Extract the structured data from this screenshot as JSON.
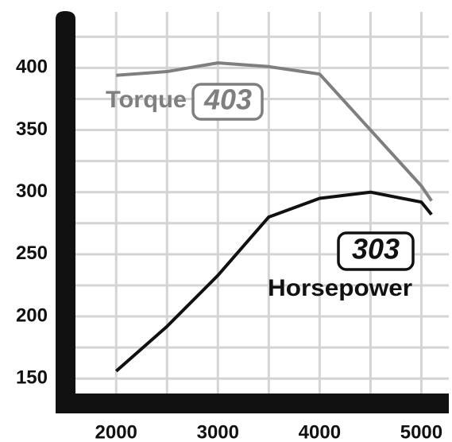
{
  "chart_data": {
    "type": "line",
    "x": [
      2000,
      2500,
      3000,
      3500,
      4000,
      4500,
      5000,
      5100
    ],
    "series": [
      {
        "name": "Torque",
        "color": "#7f7f7f",
        "rating": 403,
        "values": [
          394,
          397,
          404,
          401,
          395,
          350,
          305,
          293
        ]
      },
      {
        "name": "Horsepower",
        "color": "#111111",
        "rating": 303,
        "values": [
          156,
          192,
          233,
          280,
          295,
          300,
          292,
          282
        ]
      }
    ],
    "xlim": [
      1600,
      5270
    ],
    "xticks": [
      2000,
      3000,
      4000,
      5000
    ],
    "xgrid": [
      2000,
      2500,
      3000,
      3500,
      4000,
      4500,
      5000
    ],
    "ylim": [
      138,
      445
    ],
    "yticks": [
      150,
      200,
      250,
      300,
      350,
      400
    ],
    "ygrid": [
      150,
      175,
      200,
      225,
      250,
      275,
      300,
      325,
      350,
      375,
      400,
      425
    ],
    "grid": true
  }
}
